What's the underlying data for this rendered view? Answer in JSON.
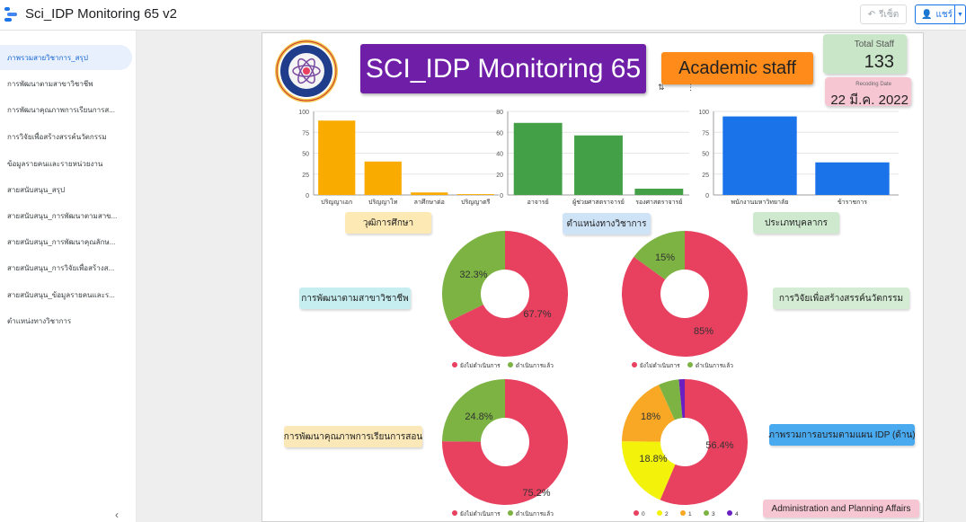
{
  "app": {
    "title": "Sci_IDP Monitoring 65 v2",
    "reset_label": "รีเซ็ต",
    "share_label": "แชร์"
  },
  "sidebar": {
    "items": [
      {
        "label": "ภาพรวมสายวิชาการ_สรุป",
        "active": true
      },
      {
        "label": "การพัฒนาตามสาขาวิชาชีพ"
      },
      {
        "label": "การพัฒนาคุณภาพการเรียนการส..."
      },
      {
        "label": "การวิจัยเพื่อสร้างสรรค์นวัตกรรม"
      },
      {
        "label": "ข้อมูลรายคนและรายหน่วยงาน"
      },
      {
        "label": "สายสนับสนุน_สรุป"
      },
      {
        "label": "สายสนับสนุน_การพัฒนาตามสาข..."
      },
      {
        "label": "สายสนับสนุน_การพัฒนาคุณลักษ..."
      },
      {
        "label": "สายสนับสนุน_การวิจัยเพื่อสร้างส..."
      },
      {
        "label": "สายสนับสนุน_ข้อมูลรายคนและร..."
      },
      {
        "label": "ตำแหน่งทางวิชาการ"
      }
    ]
  },
  "header": {
    "title": "SCI_IDP Monitoring 65",
    "subtitle": "Academic staff",
    "total_staff_label": "Total Staff",
    "total_staff_value": "133",
    "recording_date_label": "Recoding Date",
    "recording_date_value": "22 มี.ค. 2022"
  },
  "chips": {
    "education": "วุฒิการศึกษา",
    "academic_position": "ตำแหน่งทางวิชาการ",
    "personnel_type": "ประเภทบุคลากร",
    "prof_dev": "การพัฒนาตามสาขาวิชาชีพ",
    "research": "การวิจัยเพื่อสร้างสรรค์นวัตกรรม",
    "teaching": "การพัฒนาคุณภาพการเรียนการสอน",
    "idp_overview": "ภาพรวมการอบรมตามแผน IDP (ด้าน)",
    "footer": "Administration and Planning Affairs"
  },
  "colors": {
    "purple": "#6f1fa7",
    "orange": "#ff8c1a",
    "bar_yellow": "#f9ab00",
    "bar_green": "#43a047",
    "bar_blue": "#1a73e8",
    "pie_red": "#e8405f",
    "pie_green": "#7cb342",
    "pie_yellow": "#f2f20a",
    "pie_orange": "#f9a825",
    "pie_purple": "#6a1fc1"
  },
  "chart_data": [
    {
      "type": "bar",
      "categories": [
        "ปริญญาเอก",
        "ปริญญาโท",
        "ลาศึกษาต่อ",
        "ปริญญาตรี"
      ],
      "values": [
        89,
        40,
        3,
        1
      ],
      "ylim": [
        0,
        100
      ],
      "yticks": [
        0,
        25,
        50,
        75,
        100
      ],
      "color": "#f9ab00"
    },
    {
      "type": "bar",
      "categories": [
        "อาจารย์",
        "ผู้ช่วยศาสตราจารย์",
        "รองศาสตราจารย์"
      ],
      "values": [
        69,
        57,
        6
      ],
      "ylim": [
        0,
        80
      ],
      "yticks": [
        0,
        20,
        40,
        60,
        80
      ],
      "color": "#43a047"
    },
    {
      "type": "bar",
      "categories": [
        "พนักงานมหาวิทยาลัย",
        "ข้าราชการ"
      ],
      "values": [
        94,
        39
      ],
      "ylim": [
        0,
        100
      ],
      "yticks": [
        0,
        25,
        50,
        75,
        100
      ],
      "color": "#1a73e8"
    },
    {
      "type": "pie",
      "labels": [
        "ยังไม่ดำเนินการ",
        "ดำเนินการแล้ว"
      ],
      "values": [
        67.7,
        32.3
      ],
      "value_labels": [
        "67.7%",
        "32.3%"
      ],
      "colors": [
        "#e8405f",
        "#7cb342"
      ]
    },
    {
      "type": "pie",
      "labels": [
        "ยังไม่ดำเนินการ",
        "ดำเนินการแล้ว"
      ],
      "values": [
        85,
        15
      ],
      "value_labels": [
        "85%",
        "15%"
      ],
      "colors": [
        "#e8405f",
        "#7cb342"
      ]
    },
    {
      "type": "pie",
      "labels": [
        "ยังไม่ดำเนินการ",
        "ดำเนินการแล้ว"
      ],
      "values": [
        75.2,
        24.8
      ],
      "value_labels": [
        "75.2%",
        "24.8%"
      ],
      "colors": [
        "#e8405f",
        "#7cb342"
      ]
    },
    {
      "type": "pie",
      "labels": [
        "0",
        "2",
        "1",
        "3",
        "4"
      ],
      "values": [
        56.4,
        18.8,
        18,
        5.3,
        1.5
      ],
      "value_labels": [
        "56.4%",
        "18.8%",
        "18%",
        "",
        ""
      ],
      "colors": [
        "#e8405f",
        "#f2f20a",
        "#f9a825",
        "#7cb342",
        "#6a1fc1"
      ]
    }
  ]
}
